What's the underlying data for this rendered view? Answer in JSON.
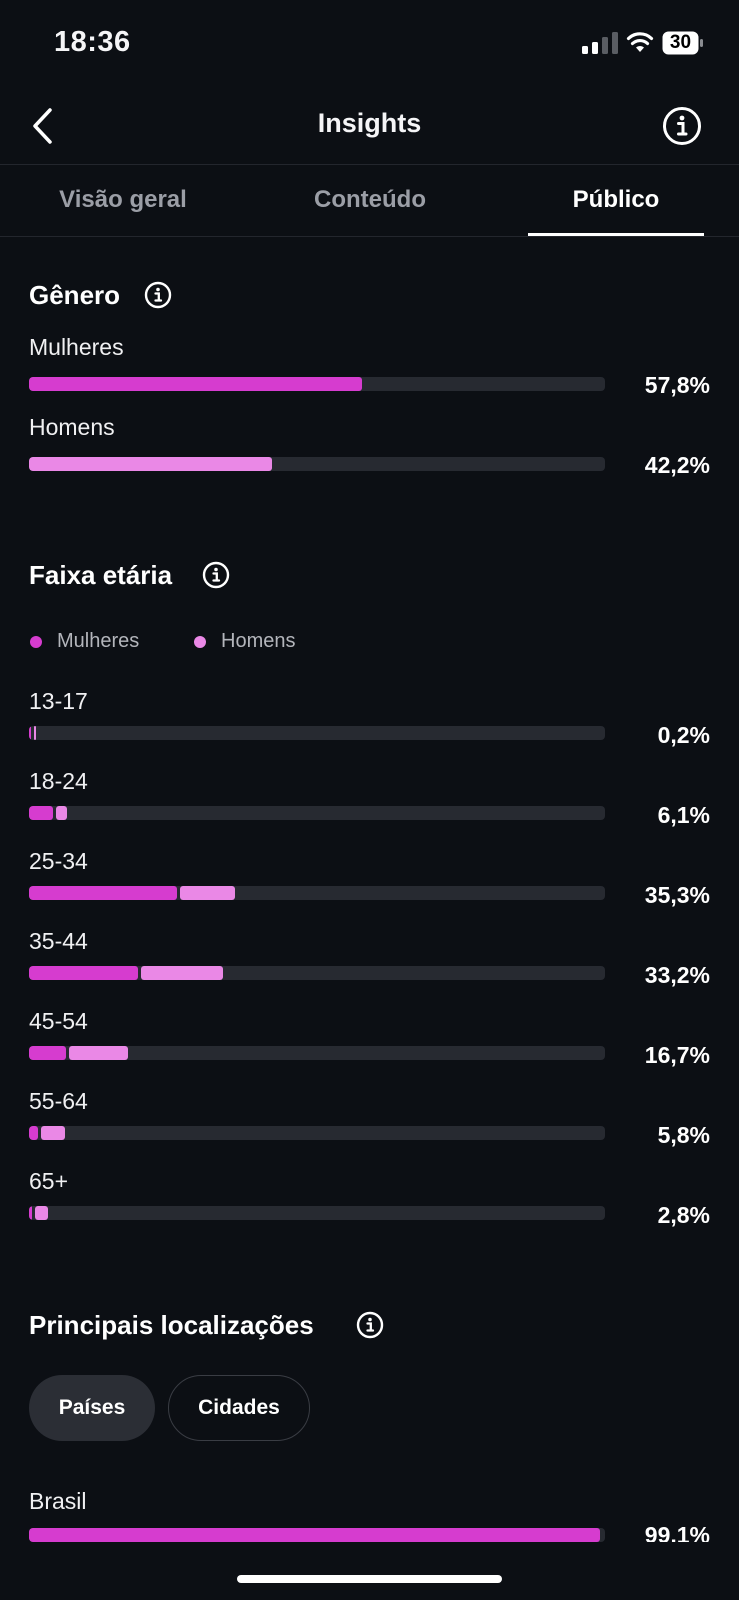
{
  "status_bar": {
    "time": "18:36",
    "battery": "30"
  },
  "header": {
    "title": "Insights"
  },
  "tabs": [
    {
      "label": "Visão geral",
      "active": false
    },
    {
      "label": "Conteúdo",
      "active": false
    },
    {
      "label": "Público",
      "active": true
    }
  ],
  "gender": {
    "title": "Gênero",
    "rows": [
      {
        "label": "Mulheres",
        "percent": 57.8,
        "percent_label": "57,8%"
      },
      {
        "label": "Homens",
        "percent": 42.2,
        "percent_label": "42,2%"
      }
    ]
  },
  "age": {
    "title": "Faixa etária",
    "legend": {
      "women": "Mulheres",
      "men": "Homens"
    },
    "rows": [
      {
        "label": "13-17",
        "total_label": "0,2%",
        "women_pct": 0.15,
        "men_pct": 0.05
      },
      {
        "label": "18-24",
        "total_label": "6,1%",
        "women_pct": 4.2,
        "men_pct": 1.9
      },
      {
        "label": "25-34",
        "total_label": "35,3%",
        "women_pct": 25.7,
        "men_pct": 9.6
      },
      {
        "label": "35-44",
        "total_label": "33,2%",
        "women_pct": 19.0,
        "men_pct": 14.2
      },
      {
        "label": "45-54",
        "total_label": "16,7%",
        "women_pct": 6.5,
        "men_pct": 10.2
      },
      {
        "label": "55-64",
        "total_label": "5,8%",
        "women_pct": 1.5,
        "men_pct": 4.3
      },
      {
        "label": "65+",
        "total_label": "2,8%",
        "women_pct": 0.6,
        "men_pct": 2.2
      }
    ]
  },
  "locations": {
    "title": "Principais localizações",
    "chips": [
      {
        "label": "Países",
        "selected": true
      },
      {
        "label": "Cidades",
        "selected": false
      }
    ],
    "rows": [
      {
        "label": "Brasil",
        "percent": 99.1,
        "percent_label": "99,1%"
      }
    ]
  },
  "colors": {
    "background": "#0c0f14",
    "women": "#d63ccf",
    "men": "#ea88e6",
    "track": "#272a31"
  }
}
